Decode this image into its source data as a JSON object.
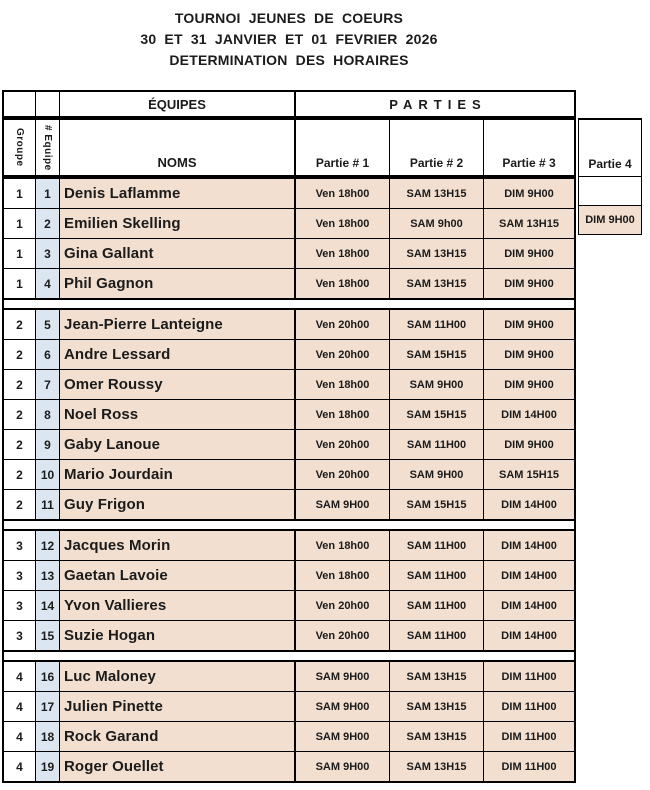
{
  "title": {
    "line1": "TOURNOI JEUNES DE COEURS",
    "line2": "30 ET 31 JANVIER ET 01 FEVRIER 2026",
    "line3": "DETERMINATION DES HORAIRES"
  },
  "table": {
    "equipes_header": "ÉQUIPES",
    "parties_header": "PARTIES",
    "col_groupe": "Groupe",
    "col_equipe": "# Equipe",
    "col_noms": "NOMS",
    "partie_cols": [
      "Partie # 1",
      "Partie # 2",
      "Partie # 3",
      "Partie 4"
    ],
    "colors": {
      "row_fill": "#F2DFD0",
      "team_number_fill": "#DCE6F1",
      "border": "#000000"
    },
    "groups": [
      {
        "groupe": 1,
        "teams": [
          {
            "num": 1,
            "name": "Denis Laflamme",
            "p1": "Ven 18h00",
            "p2": "SAM 13H15",
            "p3": "DIM 9H00",
            "p4": ""
          },
          {
            "num": 2,
            "name": "Emilien Skelling",
            "p1": "Ven 18h00",
            "p2": "SAM 9h00",
            "p3": "SAM 13H15",
            "p4": "DIM 9H00"
          },
          {
            "num": 3,
            "name": "Gina Gallant",
            "p1": "Ven 18h00",
            "p2": "SAM 13H15",
            "p3": "DIM 9H00",
            "p4": ""
          },
          {
            "num": 4,
            "name": "Phil Gagnon",
            "p1": "Ven 18h00",
            "p2": "SAM 13H15",
            "p3": "DIM 9H00",
            "p4": ""
          }
        ]
      },
      {
        "groupe": 2,
        "teams": [
          {
            "num": 5,
            "name": "Jean-Pierre Lanteigne",
            "p1": "Ven 20h00",
            "p2": "SAM 11H00",
            "p3": "DIM 9H00",
            "p4": ""
          },
          {
            "num": 6,
            "name": "Andre Lessard",
            "p1": "Ven 20h00",
            "p2": "SAM 15H15",
            "p3": "DIM 9H00",
            "p4": ""
          },
          {
            "num": 7,
            "name": "Omer Roussy",
            "p1": "Ven 18h00",
            "p2": "SAM 9H00",
            "p3": "DIM 9H00",
            "p4": ""
          },
          {
            "num": 8,
            "name": "Noel Ross",
            "p1": "Ven 18h00",
            "p2": "SAM 15H15",
            "p3": "DIM 14H00",
            "p4": ""
          },
          {
            "num": 9,
            "name": "Gaby Lanoue",
            "p1": "Ven 20h00",
            "p2": "SAM 11H00",
            "p3": "DIM 9H00",
            "p4": ""
          },
          {
            "num": 10,
            "name": "Mario Jourdain",
            "p1": "Ven 20h00",
            "p2": "SAM 9H00",
            "p3": "SAM 15H15",
            "p4": ""
          },
          {
            "num": 11,
            "name": "Guy Frigon",
            "p1": "SAM 9H00",
            "p2": "SAM 15H15",
            "p3": "DIM 14H00",
            "p4": ""
          }
        ]
      },
      {
        "groupe": 3,
        "teams": [
          {
            "num": 12,
            "name": "Jacques Morin",
            "p1": "Ven 18h00",
            "p2": "SAM 11H00",
            "p3": "DIM 14H00",
            "p4": ""
          },
          {
            "num": 13,
            "name": "Gaetan Lavoie",
            "p1": "Ven 18h00",
            "p2": "SAM 11H00",
            "p3": "DIM 14H00",
            "p4": ""
          },
          {
            "num": 14,
            "name": "Yvon Vallieres",
            "p1": "Ven 20h00",
            "p2": "SAM 11H00",
            "p3": "DIM 14H00",
            "p4": ""
          },
          {
            "num": 15,
            "name": "Suzie Hogan",
            "p1": "Ven 20h00",
            "p2": "SAM 11H00",
            "p3": "DIM 14H00",
            "p4": ""
          }
        ]
      },
      {
        "groupe": 4,
        "teams": [
          {
            "num": 16,
            "name": "Luc Maloney",
            "p1": "SAM 9H00",
            "p2": "SAM 13H15",
            "p3": "DIM 11H00",
            "p4": ""
          },
          {
            "num": 17,
            "name": "Julien Pinette",
            "p1": "SAM 9H00",
            "p2": "SAM 13H15",
            "p3": "DIM 11H00",
            "p4": ""
          },
          {
            "num": 18,
            "name": "Rock Garand",
            "p1": "SAM 9H00",
            "p2": "SAM 13H15",
            "p3": "DIM 11H00",
            "p4": ""
          },
          {
            "num": 19,
            "name": "Roger Ouellet",
            "p1": "SAM 9H00",
            "p2": "SAM 13H15",
            "p3": "DIM 11H00",
            "p4": ""
          }
        ]
      }
    ]
  }
}
